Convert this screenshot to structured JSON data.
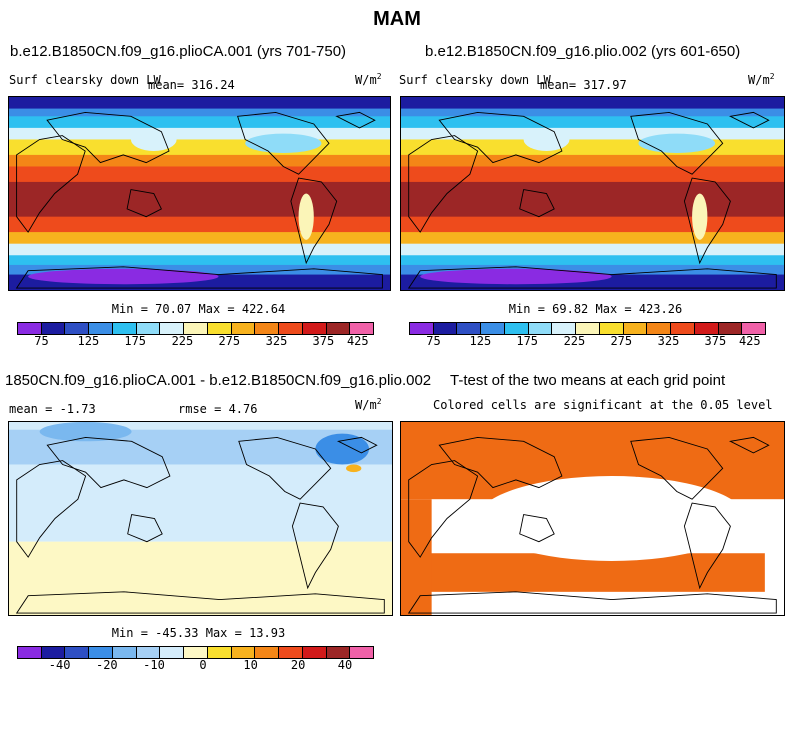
{
  "chart_data": [
    {
      "type": "heatmap",
      "title": "b.e12.B1850CN.f09_g16.plioCA.001 (yrs 701-750)",
      "subtitle_left": "Surf clearsky down LW",
      "stat": "mean= 316.24",
      "units": "W/m",
      "units_exp": "2",
      "minmax": "Min =  70.07 Max = 422.64",
      "colorbar_ticks": [
        "75",
        "125",
        "175",
        "225",
        "275",
        "325",
        "375",
        "425"
      ],
      "min": 70.07,
      "max": 422.64,
      "mean": 316.24
    },
    {
      "type": "heatmap",
      "title": "b.e12.B1850CN.f09_g16.plio.002 (yrs 601-650)",
      "subtitle_left": "Surf clearsky down LW",
      "stat": "mean= 317.97",
      "units": "W/m",
      "units_exp": "2",
      "minmax": "Min =  69.82 Max = 423.26",
      "colorbar_ticks": [
        "75",
        "125",
        "175",
        "225",
        "275",
        "325",
        "375",
        "425"
      ],
      "min": 69.82,
      "max": 423.26,
      "mean": 317.97
    },
    {
      "type": "heatmap",
      "title": "1850CN.f09_g16.plioCA.001 - b.e12.B1850CN.f09_g16.plio.002",
      "stat_mean": "mean =  -1.73",
      "stat_rmse": "rmse =   4.76",
      "units": "W/m",
      "units_exp": "2",
      "minmax": "Min = -45.33 Max =  13.93",
      "colorbar_ticks": [
        "-40",
        "-20",
        "-10",
        "0",
        "10",
        "20",
        "40"
      ],
      "min": -45.33,
      "max": 13.93,
      "mean": -1.73,
      "rmse": 4.76
    },
    {
      "type": "heatmap",
      "title": "T-test of the two means at each grid point",
      "subtitle": "Colored cells are significant at the 0.05 level"
    }
  ],
  "page": {
    "season": "MAM"
  },
  "colors": {
    "abs_scale": [
      "#8a2be2",
      "#1c1ca0",
      "#2e4fc4",
      "#3b8ee6",
      "#2ec0f0",
      "#8fdcf8",
      "#d8f2fb",
      "#fbf5b8",
      "#f9df2e",
      "#f7b21e",
      "#f48617",
      "#ee4b1c",
      "#d21a1a",
      "#9c2626",
      "#f061a8"
    ],
    "diff_scale": [
      "#8a2be2",
      "#1c1ca0",
      "#2e4fc4",
      "#3b8ee6",
      "#7ab8ef",
      "#a6d0f5",
      "#d4ecfb",
      "#fdf8c5",
      "#f9df2e",
      "#f7b21e",
      "#f48617",
      "#ee4b1c",
      "#d21a1a",
      "#9c2626",
      "#f061a8"
    ],
    "ttest": "#ef6b14"
  }
}
